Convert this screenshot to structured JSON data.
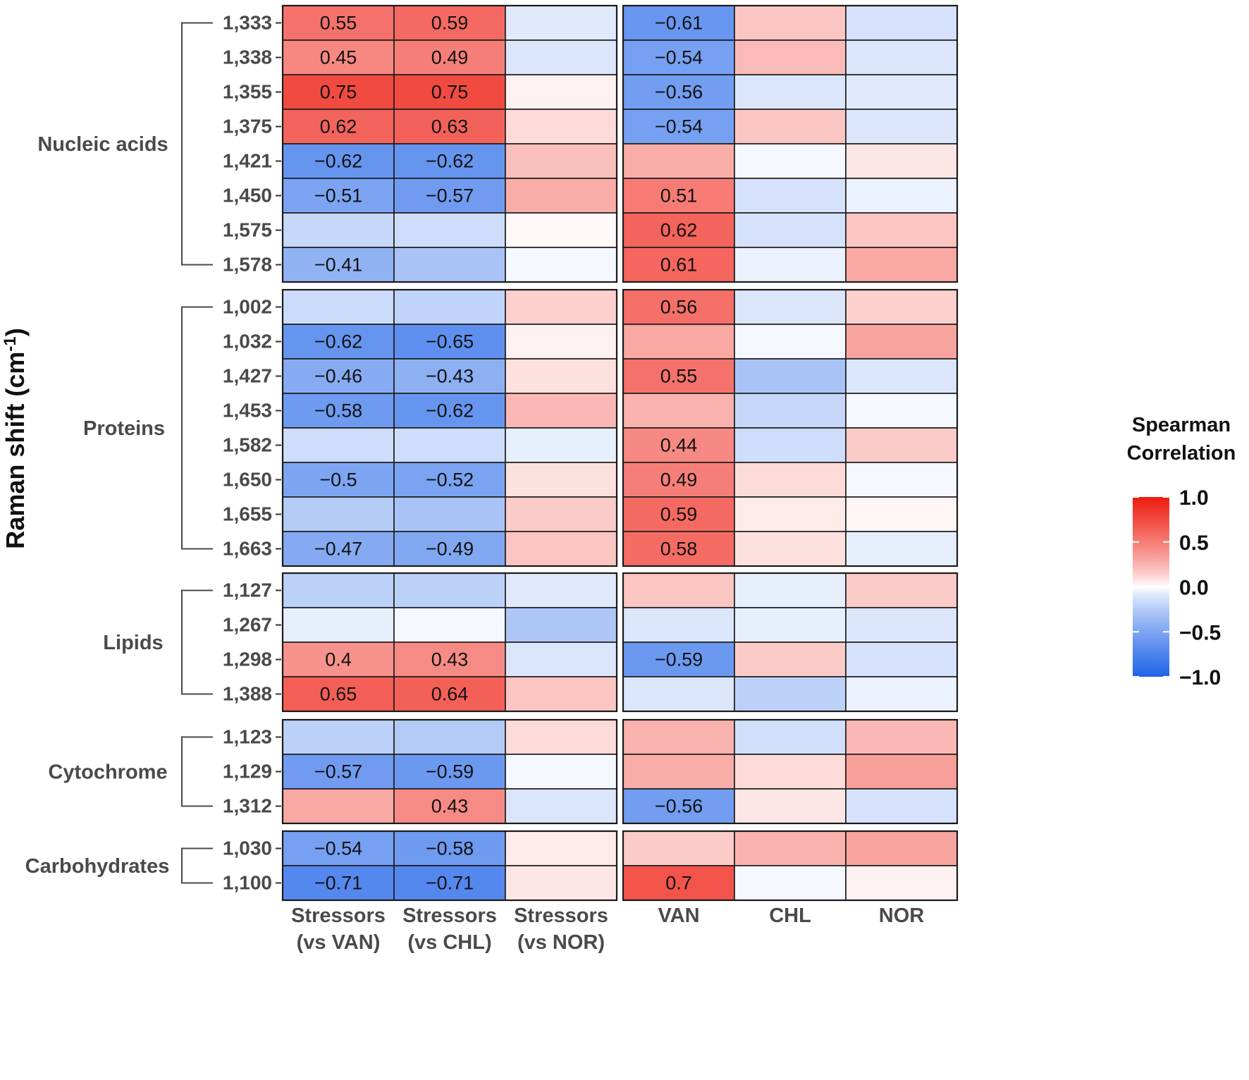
{
  "chart_data": {
    "type": "heatmap",
    "ylabel": "Raman shift (cm",
    "ylabel_sup": "-1",
    "ylabel_close": ")",
    "columns_left": [
      "Stressors\n(vs VAN)",
      "Stressors\n(vs CHL)",
      "Stressors\n(vs NOR)"
    ],
    "columns_right": [
      "VAN",
      "CHL",
      "NOR"
    ],
    "groups": [
      {
        "name": "Nucleic acids",
        "rows": [
          {
            "shift": "1,333",
            "values": [
              0.55,
              0.59,
              -0.08,
              -0.61,
              0.18,
              -0.12
            ],
            "labels": [
              "0.55",
              "0.59",
              "",
              "−0.61",
              "",
              ""
            ]
          },
          {
            "shift": "1,338",
            "values": [
              0.45,
              0.49,
              -0.1,
              -0.54,
              0.22,
              -0.1
            ],
            "labels": [
              "0.45",
              "0.49",
              "",
              "−0.54",
              "",
              ""
            ]
          },
          {
            "shift": "1,355",
            "values": [
              0.75,
              0.75,
              0.03,
              -0.56,
              -0.1,
              -0.08
            ],
            "labels": [
              "0.75",
              "0.75",
              "",
              "−0.56",
              "",
              ""
            ]
          },
          {
            "shift": "1,375",
            "values": [
              0.62,
              0.63,
              0.1,
              -0.54,
              0.18,
              -0.1
            ],
            "labels": [
              "0.62",
              "0.63",
              "",
              "−0.54",
              "",
              ""
            ]
          },
          {
            "shift": "1,421",
            "values": [
              -0.62,
              -0.62,
              0.2,
              0.28,
              -0.02,
              0.06
            ],
            "labels": [
              "−0.62",
              "−0.62",
              "",
              "",
              "",
              ""
            ]
          },
          {
            "shift": "1,450",
            "values": [
              -0.51,
              -0.57,
              0.28,
              0.51,
              -0.12,
              -0.05
            ],
            "labels": [
              "−0.51",
              "−0.57",
              "",
              "0.51",
              "",
              ""
            ]
          },
          {
            "shift": "1,575",
            "values": [
              -0.18,
              -0.15,
              0.01,
              0.62,
              -0.12,
              0.18
            ],
            "labels": [
              "",
              "",
              "",
              "0.62",
              "",
              ""
            ]
          },
          {
            "shift": "1,578",
            "values": [
              -0.41,
              -0.3,
              -0.02,
              0.61,
              -0.05,
              0.3
            ],
            "labels": [
              "−0.41",
              "",
              "",
              "0.61",
              "",
              ""
            ]
          }
        ]
      },
      {
        "name": "Proteins",
        "rows": [
          {
            "shift": "1,002",
            "values": [
              -0.16,
              -0.2,
              0.14,
              0.56,
              -0.1,
              0.14
            ],
            "labels": [
              "",
              "",
              "",
              "0.56",
              "",
              ""
            ]
          },
          {
            "shift": "1,032",
            "values": [
              -0.62,
              -0.65,
              0.03,
              0.3,
              -0.02,
              0.32
            ],
            "labels": [
              "−0.62",
              "−0.65",
              "",
              "",
              "",
              ""
            ]
          },
          {
            "shift": "1,427",
            "values": [
              -0.46,
              -0.43,
              0.08,
              0.55,
              -0.3,
              -0.1
            ],
            "labels": [
              "−0.46",
              "−0.43",
              "",
              "0.55",
              "",
              ""
            ]
          },
          {
            "shift": "1,453",
            "values": [
              -0.58,
              -0.62,
              0.24,
              0.26,
              -0.18,
              -0.02
            ],
            "labels": [
              "−0.58",
              "−0.62",
              "",
              "",
              "",
              ""
            ]
          },
          {
            "shift": "1,582",
            "values": [
              -0.15,
              -0.15,
              -0.06,
              0.44,
              -0.15,
              0.16
            ],
            "labels": [
              "",
              "",
              "",
              "0.44",
              "",
              ""
            ]
          },
          {
            "shift": "1,650",
            "values": [
              -0.5,
              -0.52,
              0.08,
              0.49,
              0.1,
              -0.02
            ],
            "labels": [
              "−0.5",
              "−0.52",
              "",
              "0.49",
              "",
              ""
            ]
          },
          {
            "shift": "1,655",
            "values": [
              -0.25,
              -0.3,
              0.16,
              0.59,
              0.05,
              0.02
            ],
            "labels": [
              "",
              "",
              "",
              "0.59",
              "",
              ""
            ]
          },
          {
            "shift": "1,663",
            "values": [
              -0.47,
              -0.49,
              0.18,
              0.58,
              0.08,
              -0.06
            ],
            "labels": [
              "−0.47",
              "−0.49",
              "",
              "0.58",
              "",
              ""
            ]
          }
        ]
      },
      {
        "name": "Lipids",
        "rows": [
          {
            "shift": "1,127",
            "values": [
              -0.22,
              -0.22,
              -0.08,
              0.18,
              -0.06,
              0.16
            ],
            "labels": [
              "",
              "",
              "",
              "",
              "",
              ""
            ]
          },
          {
            "shift": "1,267",
            "values": [
              -0.06,
              -0.02,
              -0.28,
              -0.1,
              -0.06,
              -0.1
            ],
            "labels": [
              "",
              "",
              "",
              "",
              "",
              ""
            ]
          },
          {
            "shift": "1,298",
            "values": [
              0.4,
              0.43,
              -0.1,
              -0.59,
              0.16,
              -0.12
            ],
            "labels": [
              "0.4",
              "0.43",
              "",
              "−0.59",
              "",
              ""
            ]
          },
          {
            "shift": "1,388",
            "values": [
              0.65,
              0.64,
              0.18,
              -0.1,
              -0.22,
              -0.05
            ],
            "labels": [
              "0.65",
              "0.64",
              "",
              "",
              "",
              ""
            ]
          }
        ]
      },
      {
        "name": "Cytochrome",
        "rows": [
          {
            "shift": "1,123",
            "values": [
              -0.22,
              -0.26,
              0.1,
              0.26,
              -0.14,
              0.24
            ],
            "labels": [
              "",
              "",
              "",
              "",
              "",
              ""
            ]
          },
          {
            "shift": "1,129",
            "values": [
              -0.57,
              -0.59,
              -0.02,
              0.28,
              0.1,
              0.34
            ],
            "labels": [
              "−0.57",
              "−0.59",
              "",
              "",
              "",
              ""
            ]
          },
          {
            "shift": "1,312",
            "values": [
              0.3,
              0.43,
              -0.1,
              -0.56,
              0.06,
              -0.12
            ],
            "labels": [
              "",
              "0.43",
              "",
              "−0.56",
              "",
              ""
            ]
          }
        ]
      },
      {
        "name": "Carbohydrates",
        "rows": [
          {
            "shift": "1,030",
            "values": [
              -0.54,
              -0.58,
              0.05,
              0.16,
              0.26,
              0.32
            ],
            "labels": [
              "−0.54",
              "−0.58",
              "",
              "",
              "",
              ""
            ]
          },
          {
            "shift": "1,100",
            "values": [
              -0.71,
              -0.71,
              0.06,
              0.7,
              -0.02,
              0.03
            ],
            "labels": [
              "−0.71",
              "−0.71",
              "",
              "0.7",
              "",
              ""
            ]
          }
        ]
      }
    ],
    "legend": {
      "title_line1": "Spearman",
      "title_line2": "Correlation",
      "range": [
        -1.0,
        1.0
      ],
      "ticks": [
        "1.0",
        "0.5",
        "0.0",
        "−0.5",
        "−1.0"
      ],
      "tick_values": [
        1.0,
        0.5,
        0.0,
        -0.5,
        -1.0
      ],
      "placement": "right"
    },
    "colors": {
      "low": "#1f63e8",
      "mid": "#ffffff",
      "high": "#ee1c10"
    }
  }
}
